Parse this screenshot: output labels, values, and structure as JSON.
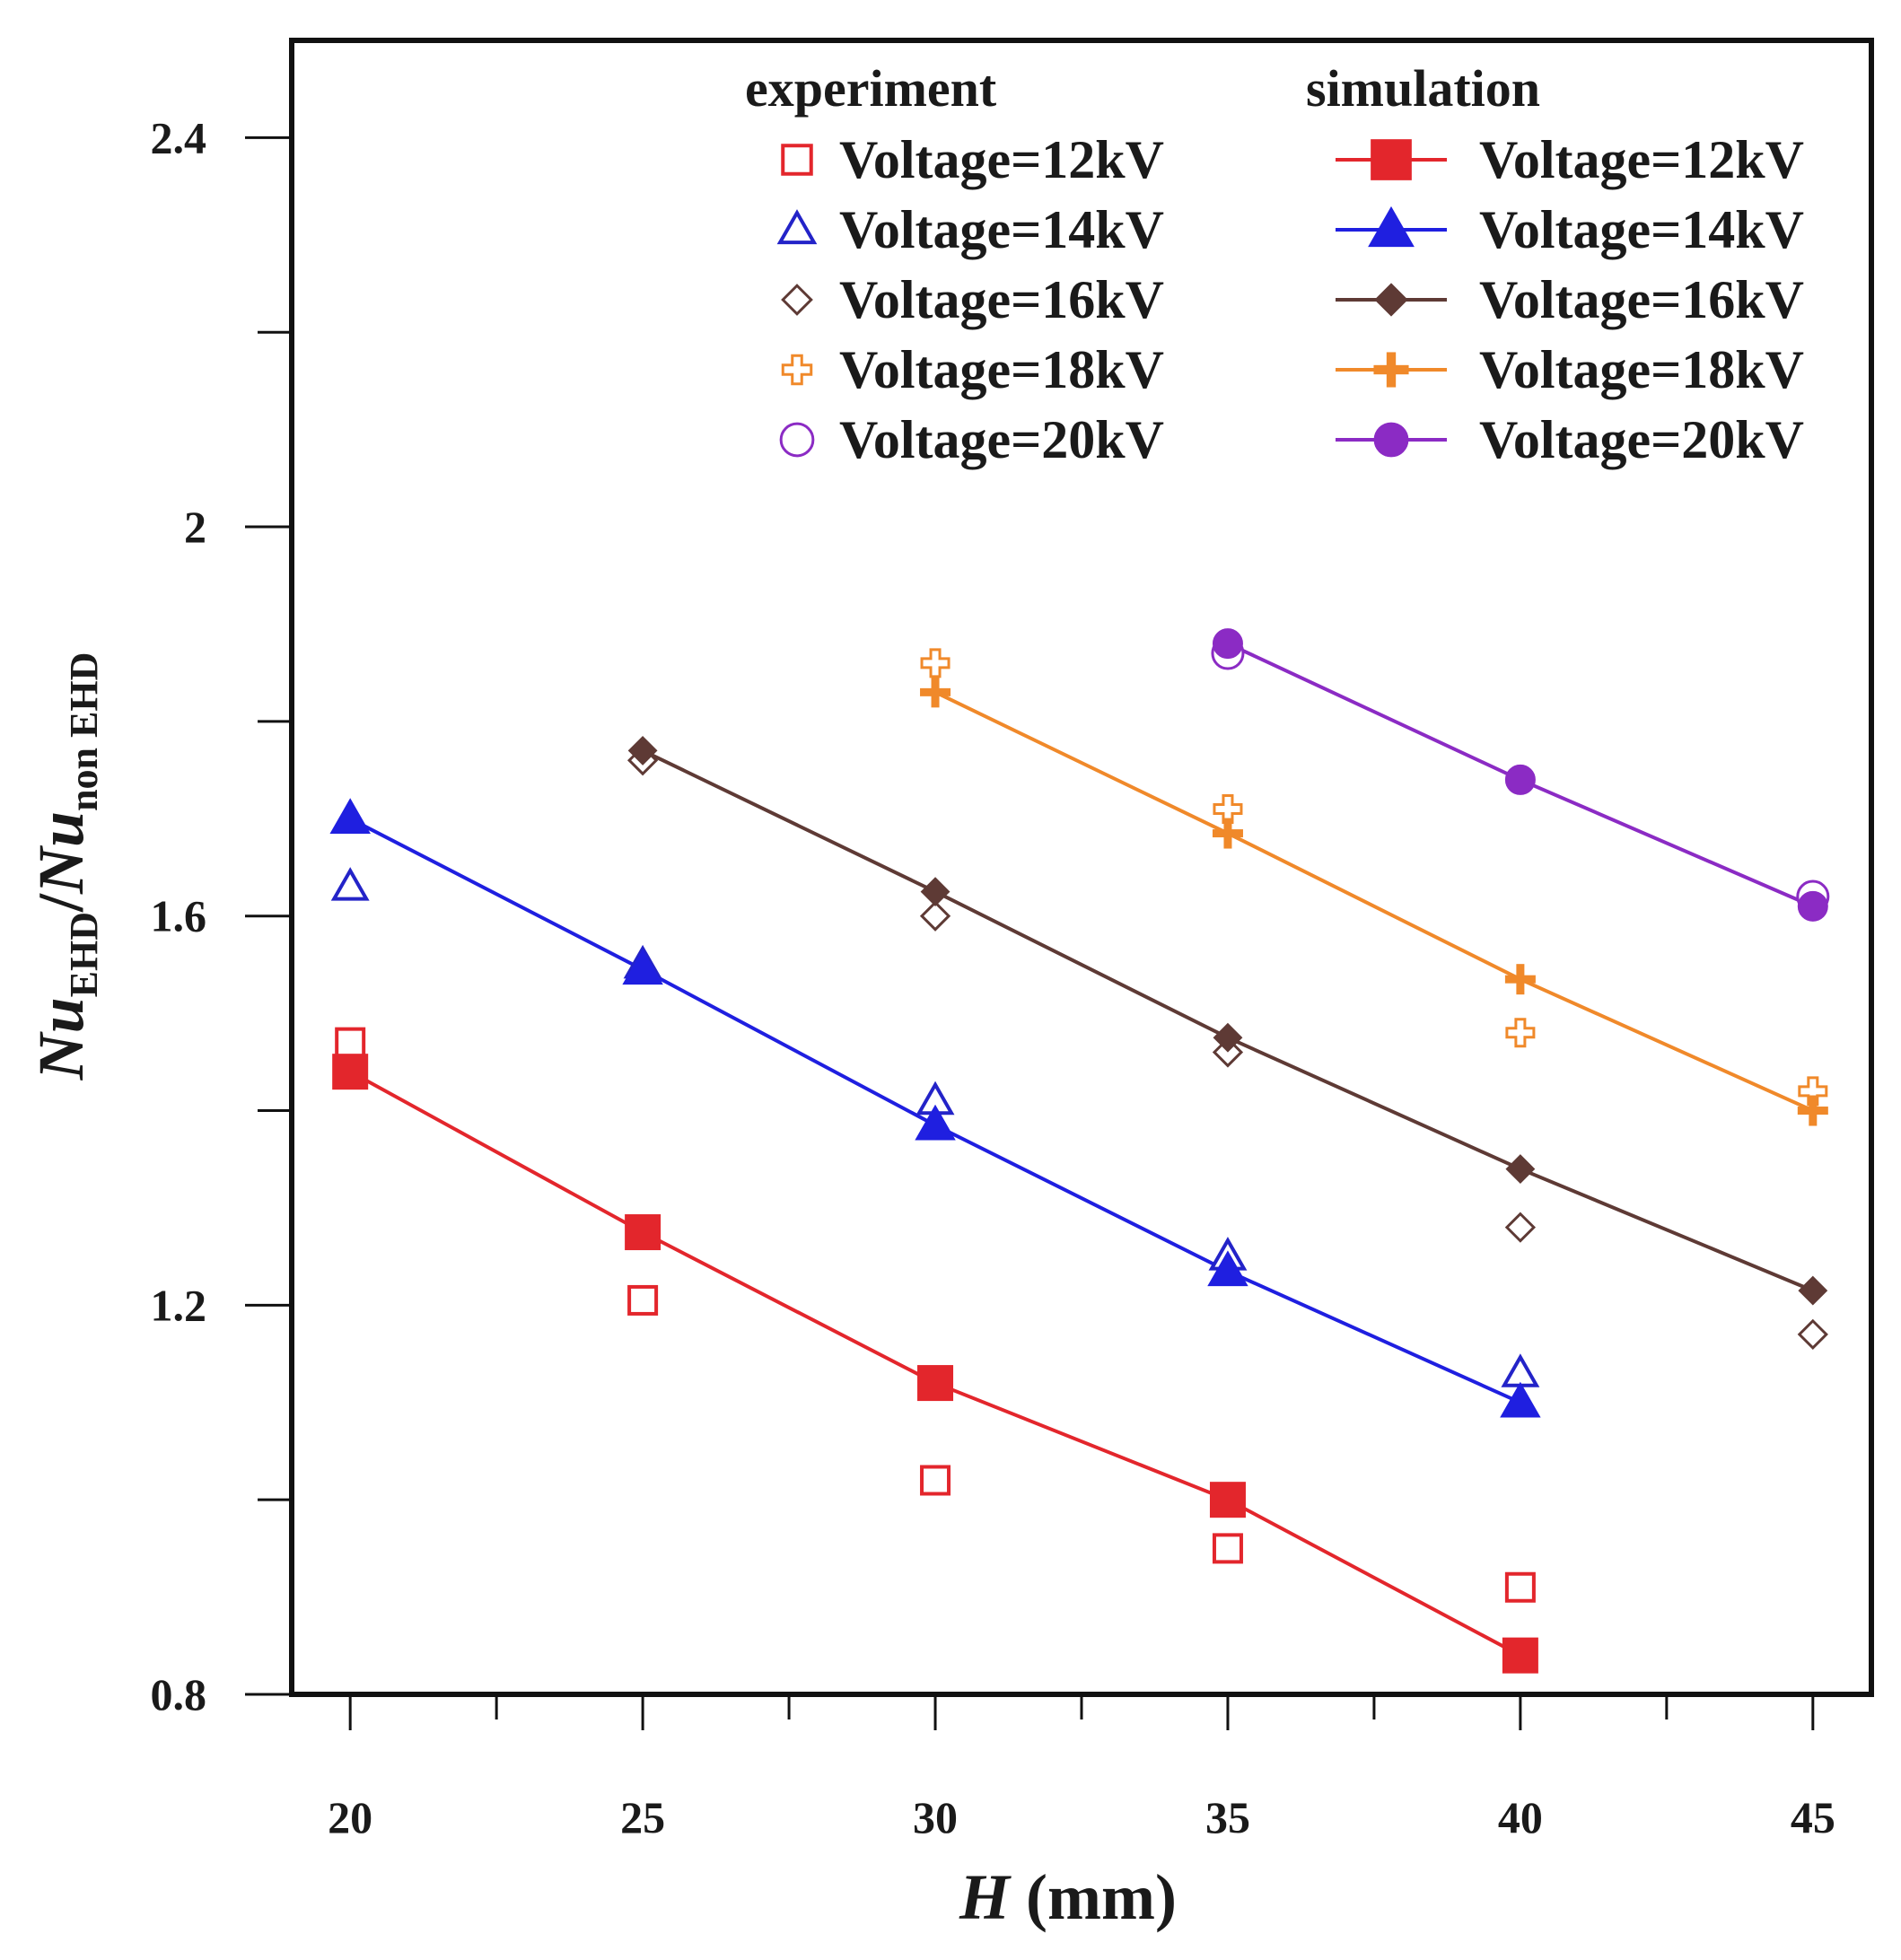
{
  "chart_data": {
    "type": "scatter",
    "xlabel": {
      "main": "H",
      "unit": " (mm)"
    },
    "ylabel": {
      "num": "Nu",
      "num_sub": "EHD",
      "slash": "/",
      "den": "Nu",
      "den_sub": "non EHD"
    },
    "xlim": [
      19,
      46
    ],
    "ylim": [
      0.8,
      2.5
    ],
    "x_ticks": [
      20,
      25,
      30,
      35,
      40,
      45
    ],
    "x_tick_labels": [
      "20",
      "25",
      "30",
      "35",
      "40",
      "45"
    ],
    "y_ticks": [
      0.8,
      1.2,
      1.6,
      2.0,
      2.4
    ],
    "y_tick_labels": [
      "0.8",
      "1.2",
      "1.6",
      "2",
      "2.4"
    ],
    "legend": {
      "experiment_title": "experiment",
      "simulation_title": "simulation"
    },
    "experiment": [
      {
        "name": "Voltage=12kV",
        "color": "#e3262c",
        "marker": "square-open",
        "x": [
          20,
          25,
          30,
          35,
          40
        ],
        "y": [
          1.47,
          1.205,
          1.02,
          0.95,
          0.91
        ]
      },
      {
        "name": "Voltage=14kV",
        "color": "#2323c8",
        "marker": "triangle-open",
        "x": [
          20,
          25,
          30,
          35,
          40
        ],
        "y": [
          1.63,
          1.55,
          1.41,
          1.25,
          1.13
        ]
      },
      {
        "name": "Voltage=16kV",
        "color": "#5e3a35",
        "marker": "diamond-open",
        "x": [
          25,
          30,
          35,
          40,
          45
        ],
        "y": [
          1.76,
          1.6,
          1.46,
          1.28,
          1.17
        ]
      },
      {
        "name": "Voltage=18kV",
        "color": "#f0892a",
        "marker": "plus-open",
        "x": [
          30,
          35,
          40,
          45
        ],
        "y": [
          1.86,
          1.71,
          1.48,
          1.42
        ]
      },
      {
        "name": "Voltage=20kV",
        "color": "#8b2bc4",
        "marker": "circle-open",
        "x": [
          35,
          45
        ],
        "y": [
          1.87,
          1.62
        ]
      }
    ],
    "simulation": [
      {
        "name": "Voltage=12kV",
        "color": "#e3262c",
        "marker": "square-filled",
        "x": [
          20,
          25,
          30,
          35,
          40
        ],
        "y": [
          1.44,
          1.275,
          1.12,
          1.0,
          0.84
        ]
      },
      {
        "name": "Voltage=14kV",
        "color": "#1f1fe0",
        "marker": "triangle-filled",
        "x": [
          20,
          25,
          30,
          35,
          40
        ],
        "y": [
          1.7,
          1.545,
          1.385,
          1.235,
          1.1
        ]
      },
      {
        "name": "Voltage=16kV",
        "color": "#5e3a35",
        "marker": "diamond-filled",
        "x": [
          25,
          30,
          35,
          40,
          45
        ],
        "y": [
          1.77,
          1.625,
          1.475,
          1.34,
          1.215
        ]
      },
      {
        "name": "Voltage=18kV",
        "color": "#f0892a",
        "marker": "plus-filled",
        "x": [
          30,
          35,
          40,
          45
        ],
        "y": [
          1.83,
          1.685,
          1.535,
          1.4
        ]
      },
      {
        "name": "Voltage=20kV",
        "color": "#8b2bc4",
        "marker": "circle-filled",
        "x": [
          35,
          40,
          45
        ],
        "y": [
          1.88,
          1.74,
          1.61
        ]
      }
    ]
  }
}
